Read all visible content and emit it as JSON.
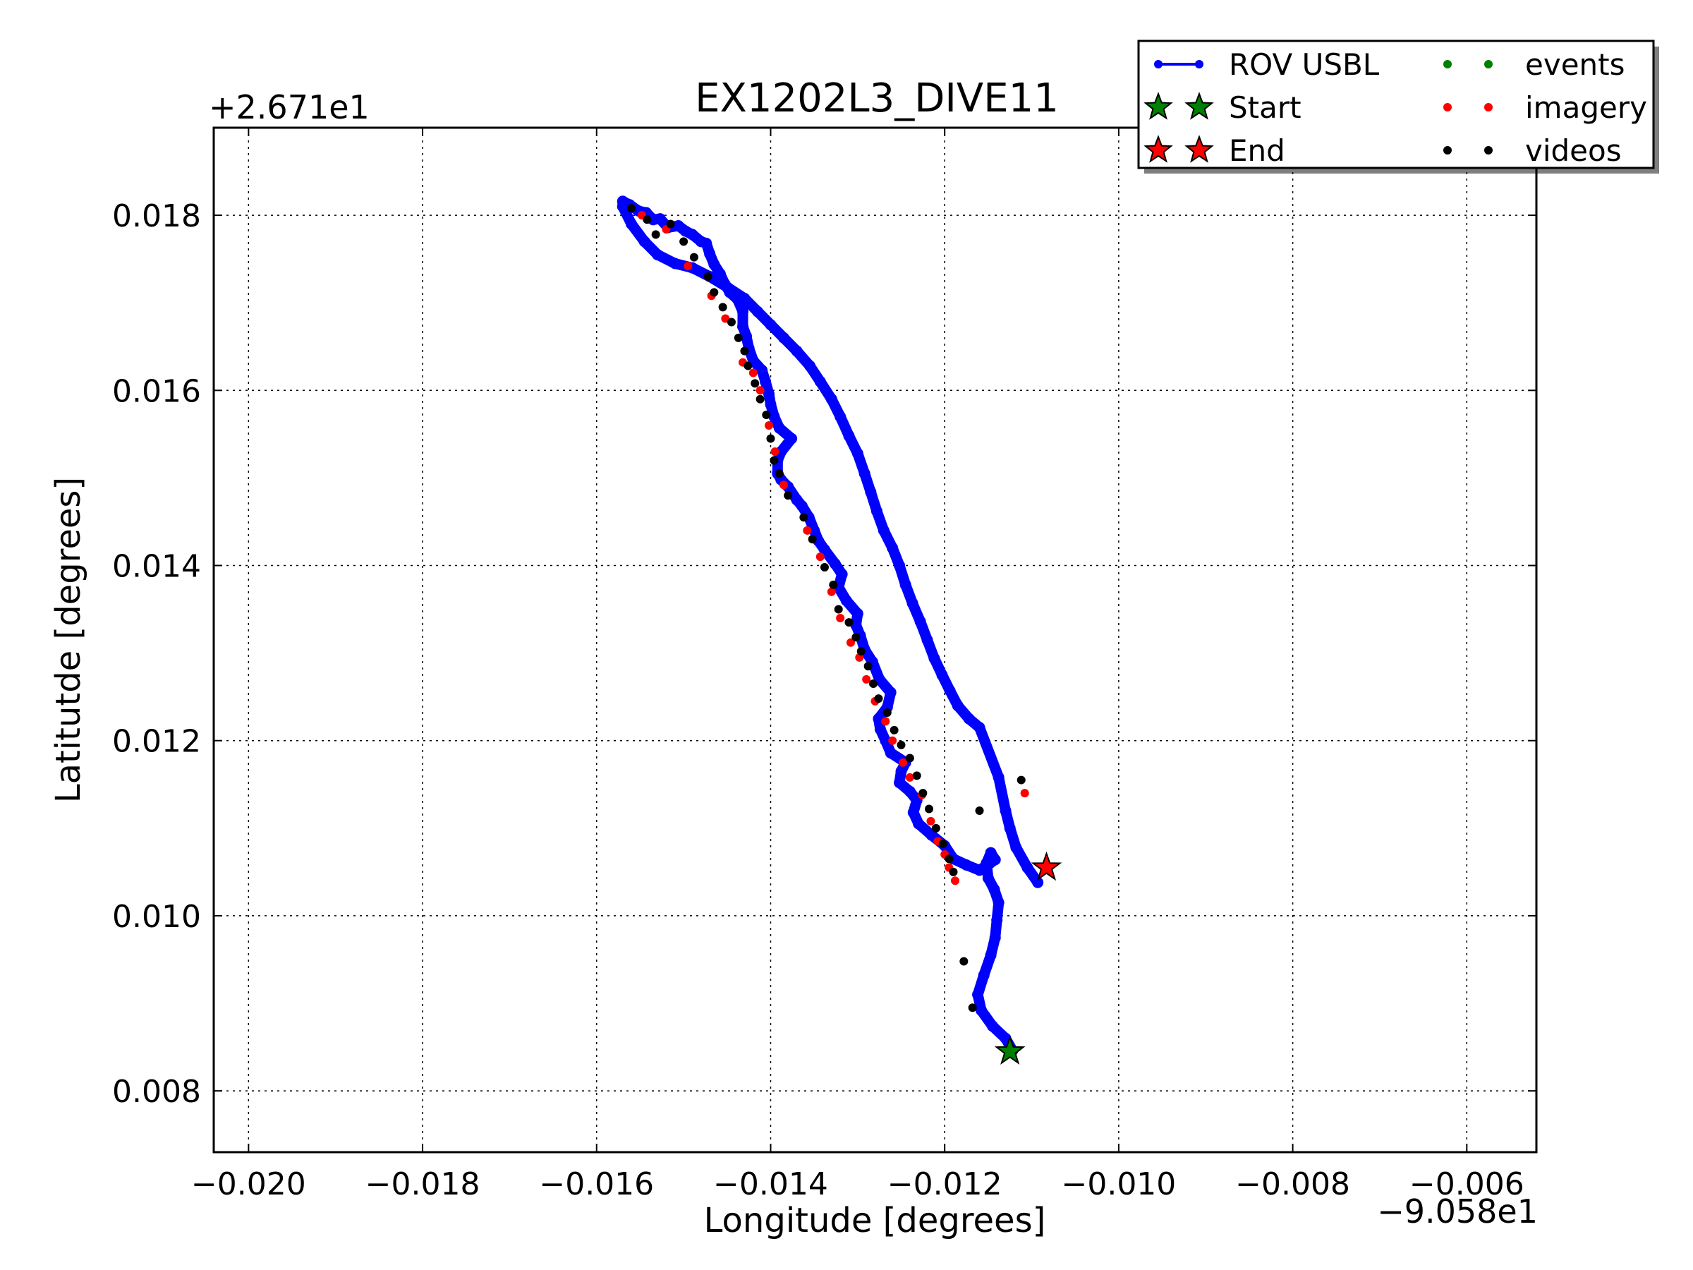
{
  "chart_data": {
    "type": "scatter",
    "title": "EX1202L3_DIVE11",
    "xlabel": "Longitude [degrees]",
    "ylabel": "Latitutde [degrees]",
    "x_offset_label": "−9.058e1",
    "y_offset_label": "+2.671e1",
    "x_offset": -90.58,
    "y_offset": 26.71,
    "xlim": [
      -0.0204,
      -0.0052
    ],
    "ylim": [
      0.0073,
      0.019
    ],
    "xticks": [
      -0.02,
      -0.018,
      -0.016,
      -0.014,
      -0.012,
      -0.01,
      -0.008,
      -0.006
    ],
    "xtick_labels": [
      "−0.020",
      "−0.018",
      "−0.016",
      "−0.014",
      "−0.012",
      "−0.010",
      "−0.008",
      "−0.006"
    ],
    "yticks": [
      0.008,
      0.01,
      0.012,
      0.014,
      0.016,
      0.018
    ],
    "ytick_labels": [
      "0.008",
      "0.010",
      "0.012",
      "0.014",
      "0.016",
      "0.018"
    ],
    "grid": true,
    "legend_position": "top-right, outside axes",
    "legend": [
      {
        "label": "ROV USBL",
        "marker": "line-dot",
        "color": "#0000ff"
      },
      {
        "label": "events",
        "marker": "dot",
        "color": "#008000"
      },
      {
        "label": "Start",
        "marker": "star",
        "color": "#008000"
      },
      {
        "label": "imagery",
        "marker": "dot",
        "color": "#ff0000"
      },
      {
        "label": "End",
        "marker": "star",
        "color": "#ff0000"
      },
      {
        "label": "videos",
        "marker": "dot",
        "color": "#000000"
      }
    ],
    "series": [
      {
        "name": "ROV USBL",
        "color": "#0000ff",
        "x": [
          -0.01122,
          -0.0113,
          -0.01145,
          -0.01158,
          -0.01162,
          -0.01155,
          -0.01147,
          -0.01142,
          -0.0114,
          -0.01138,
          -0.01143,
          -0.0115,
          -0.01152,
          -0.01147,
          -0.01142,
          -0.01148,
          -0.0116,
          -0.01175,
          -0.0119,
          -0.012,
          -0.01215,
          -0.0123,
          -0.01236,
          -0.01232,
          -0.0124,
          -0.01252,
          -0.0125,
          -0.01245,
          -0.01262,
          -0.01268,
          -0.01274,
          -0.01276,
          -0.01266,
          -0.01262,
          -0.01275,
          -0.01283,
          -0.01292,
          -0.01297,
          -0.01302,
          -0.013,
          -0.01313,
          -0.01322,
          -0.01318,
          -0.01326,
          -0.01338,
          -0.01345,
          -0.0135,
          -0.01356,
          -0.01364,
          -0.0137,
          -0.0138,
          -0.01388,
          -0.01392,
          -0.01392,
          -0.01388,
          -0.01376,
          -0.0139,
          -0.01396,
          -0.014,
          -0.01402,
          -0.01406,
          -0.0141,
          -0.0142,
          -0.01425,
          -0.01428,
          -0.01432,
          -0.01432,
          -0.01438,
          -0.01447,
          -0.01453,
          -0.01458,
          -0.01465,
          -0.0147,
          -0.01474,
          -0.0148,
          -0.0149,
          -0.01498,
          -0.01506,
          -0.01518,
          -0.01527,
          -0.01535,
          -0.01543,
          -0.01552,
          -0.01562,
          -0.0157,
          -0.0157,
          -0.0156,
          -0.01545,
          -0.0153,
          -0.0151,
          -0.0149,
          -0.0147,
          -0.0145,
          -0.0143,
          -0.01415,
          -0.014,
          -0.01385,
          -0.0137,
          -0.01355,
          -0.01343,
          -0.0133,
          -0.0132,
          -0.0131,
          -0.013,
          -0.01292,
          -0.01285,
          -0.01278,
          -0.0127,
          -0.0126,
          -0.01252,
          -0.01245,
          -0.01237,
          -0.01228,
          -0.0122,
          -0.01212,
          -0.01203,
          -0.01194,
          -0.01185,
          -0.01172,
          -0.0116,
          -0.01138,
          -0.0113,
          -0.01125,
          -0.01118,
          -0.01105,
          -0.01093
        ],
        "y": [
          0.00846,
          0.0086,
          0.00874,
          0.00892,
          0.0091,
          0.00932,
          0.00955,
          0.00975,
          0.00995,
          0.01015,
          0.0103,
          0.01043,
          0.0106,
          0.01072,
          0.01064,
          0.0106,
          0.01052,
          0.01058,
          0.01065,
          0.0108,
          0.01092,
          0.01105,
          0.01118,
          0.01132,
          0.01142,
          0.01152,
          0.01165,
          0.01175,
          0.01186,
          0.012,
          0.01213,
          0.01225,
          0.01238,
          0.01255,
          0.0127,
          0.0129,
          0.01304,
          0.0132,
          0.01332,
          0.01345,
          0.0136,
          0.01375,
          0.0139,
          0.01402,
          0.01418,
          0.01428,
          0.0144,
          0.01455,
          0.01468,
          0.01475,
          0.0149,
          0.01498,
          0.01505,
          0.0152,
          0.0153,
          0.01545,
          0.01557,
          0.0157,
          0.01584,
          0.01596,
          0.0161,
          0.01623,
          0.01634,
          0.01648,
          0.01662,
          0.01673,
          0.0169,
          0.01704,
          0.01712,
          0.01722,
          0.01733,
          0.01744,
          0.01756,
          0.01768,
          0.0177,
          0.01778,
          0.01782,
          0.01788,
          0.01786,
          0.01796,
          0.01795,
          0.01803,
          0.01805,
          0.01812,
          0.01816,
          0.0181,
          0.0179,
          0.0177,
          0.01755,
          0.01745,
          0.0174,
          0.0173,
          0.01718,
          0.01705,
          0.0169,
          0.01675,
          0.0166,
          0.01645,
          0.01628,
          0.0161,
          0.0159,
          0.0157,
          0.01548,
          0.01528,
          0.01505,
          0.01484,
          0.01462,
          0.0144,
          0.0142,
          0.014,
          0.01378,
          0.01357,
          0.01336,
          0.01315,
          0.01294,
          0.01275,
          0.01257,
          0.0124,
          0.01225,
          0.01215,
          0.01158,
          0.0112,
          0.011,
          0.01078,
          0.01055,
          0.01038
        ]
      },
      {
        "name": "imagery",
        "color": "#ff0000",
        "x": [
          -0.01548,
          -0.0152,
          -0.01495,
          -0.01468,
          -0.01452,
          -0.01432,
          -0.0142,
          -0.01412,
          -0.01402,
          -0.01395,
          -0.01385,
          -0.01358,
          -0.01343,
          -0.0133,
          -0.0132,
          -0.01308,
          -0.01298,
          -0.0129,
          -0.0128,
          -0.01268,
          -0.0126,
          -0.01248,
          -0.0124,
          -0.01226,
          -0.01216,
          -0.01208,
          -0.012,
          -0.01195,
          -0.01188,
          -0.01108
        ],
        "y": [
          0.018,
          0.01784,
          0.01742,
          0.01708,
          0.01682,
          0.01632,
          0.0162,
          0.016,
          0.0156,
          0.0153,
          0.01492,
          0.0144,
          0.0141,
          0.0137,
          0.0134,
          0.01312,
          0.01295,
          0.0127,
          0.01245,
          0.01222,
          0.012,
          0.01175,
          0.01158,
          0.01138,
          0.01108,
          0.01085,
          0.0107,
          0.01055,
          0.0104,
          0.0114
        ]
      },
      {
        "name": "videos",
        "color": "#000000",
        "x": [
          -0.0156,
          -0.01542,
          -0.01532,
          -0.01515,
          -0.015,
          -0.01488,
          -0.01472,
          -0.01465,
          -0.01455,
          -0.01445,
          -0.01437,
          -0.0143,
          -0.01426,
          -0.01418,
          -0.01412,
          -0.01405,
          -0.014,
          -0.01396,
          -0.0139,
          -0.0138,
          -0.01362,
          -0.01352,
          -0.01338,
          -0.01328,
          -0.01322,
          -0.0131,
          -0.01302,
          -0.01296,
          -0.01288,
          -0.01282,
          -0.01276,
          -0.01266,
          -0.01258,
          -0.0125,
          -0.0124,
          -0.01232,
          -0.01225,
          -0.01218,
          -0.0121,
          -0.01202,
          -0.01195,
          -0.0119,
          -0.01178,
          -0.01168,
          -0.0116,
          -0.01112
        ],
        "y": [
          0.01808,
          0.01795,
          0.01778,
          0.0179,
          0.0177,
          0.01752,
          0.0173,
          0.01712,
          0.01695,
          0.01678,
          0.0166,
          0.01645,
          0.01628,
          0.01608,
          0.0159,
          0.01572,
          0.01545,
          0.0152,
          0.01505,
          0.0148,
          0.01455,
          0.0143,
          0.01398,
          0.01378,
          0.0135,
          0.01335,
          0.01318,
          0.01302,
          0.01285,
          0.01265,
          0.01248,
          0.01232,
          0.01212,
          0.01195,
          0.0118,
          0.0116,
          0.0114,
          0.01122,
          0.011,
          0.01082,
          0.01065,
          0.0105,
          0.00948,
          0.00895,
          0.0112,
          0.01155
        ]
      }
    ],
    "markers": {
      "start": {
        "x": -0.01125,
        "y": 0.00845,
        "color": "#008000"
      },
      "end": {
        "x": -0.01083,
        "y": 0.01055,
        "color": "#ff0000"
      }
    }
  }
}
